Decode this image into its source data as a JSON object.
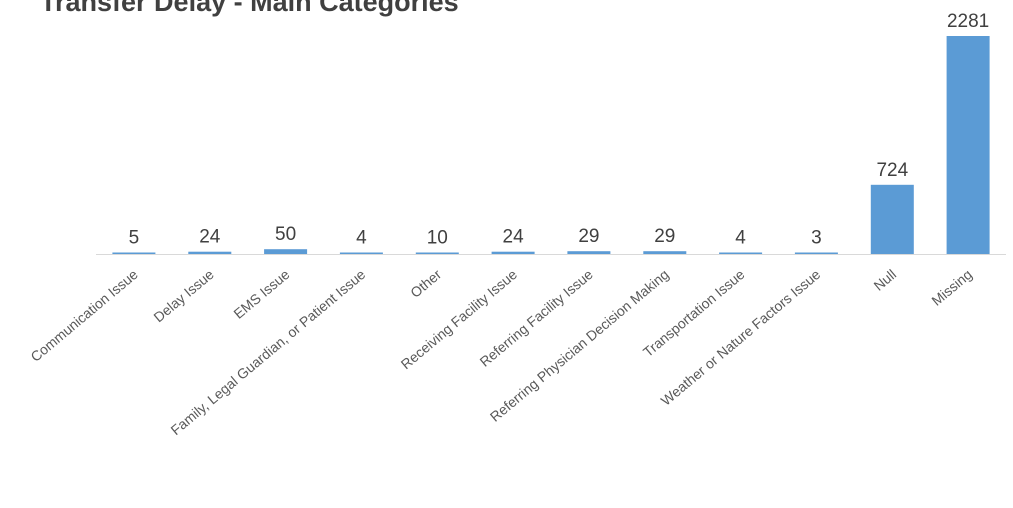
{
  "chart_data": {
    "type": "bar",
    "title": "Transfer Delay - Main Categories",
    "categories": [
      "Communication Issue",
      "Delay Issue",
      "EMS Issue",
      "Family, Legal Guardian, or Patient Issue",
      "Other",
      "Receiving Facility Issue",
      "Referring Facility Issue",
      "Referring Physician Decision Making",
      "Transportation Issue",
      "Weather or Nature Factors Issue",
      "Null",
      "Missing"
    ],
    "values": [
      5,
      24,
      50,
      4,
      10,
      24,
      29,
      29,
      4,
      3,
      724,
      2281
    ],
    "xlabel": "",
    "ylabel": "",
    "ylim": [
      0,
      2281
    ],
    "bar_color": "#5B9BD5",
    "axis_color": "#D9D9D9",
    "grid": false,
    "legend": "none",
    "data_labels": true
  }
}
